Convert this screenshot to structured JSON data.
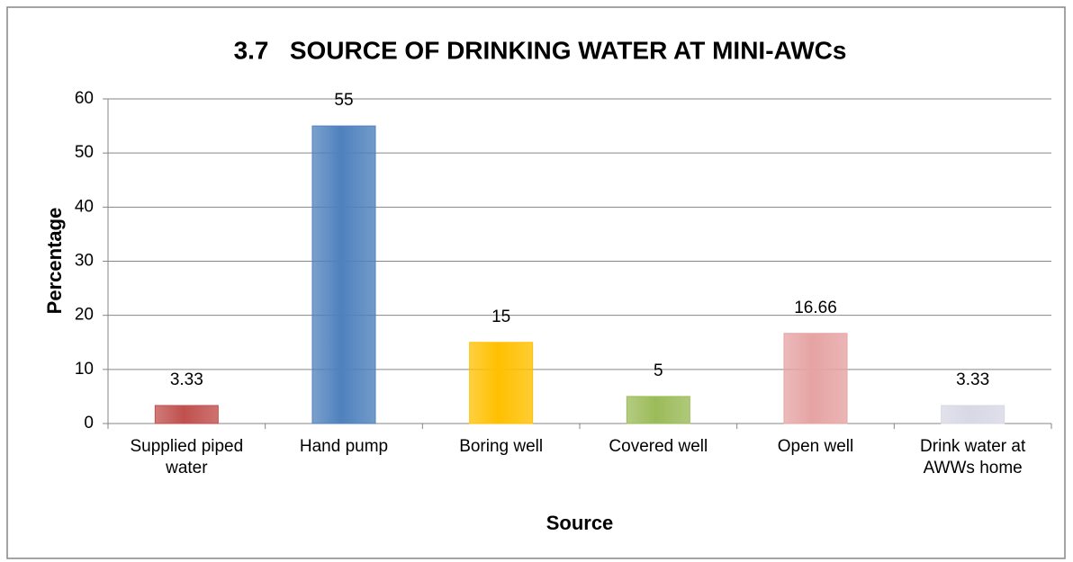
{
  "chart_data": {
    "type": "bar",
    "title": "3.7   SOURCE OF DRINKING WATER AT MINI-AWCs",
    "x_label": "Source",
    "y_label": "Percentage",
    "categories": [
      "Supplied piped water",
      "Hand pump",
      "Boring well",
      "Covered well",
      "Open well",
      "Drink water at AWWs home"
    ],
    "values": [
      3.33,
      55,
      15,
      5,
      16.66,
      3.33
    ],
    "colors": [
      "#c0504d",
      "#4f81bd",
      "#ffc000",
      "#9bbb59",
      "#e6a3a3",
      "#d8d8e6"
    ],
    "ylim": [
      0,
      60
    ],
    "yticks": [
      0,
      10,
      20,
      30,
      40,
      50,
      60
    ],
    "grid": true
  }
}
